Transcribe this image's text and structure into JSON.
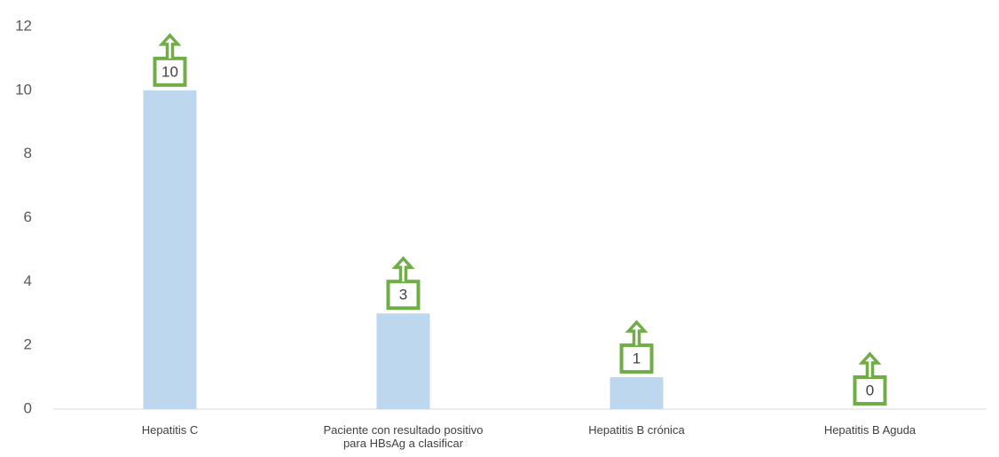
{
  "chart_data": {
    "type": "bar",
    "categories": [
      "Hepatitis C",
      "Paciente con resultado positivo para HBsAg a clasificar",
      "Hepatitis B crónica",
      "Hepatitis B Aguda"
    ],
    "values": [
      10,
      3,
      1,
      0
    ],
    "color": "#bdd7ee",
    "label_color": "#70ad47",
    "ylim": [
      0,
      12
    ],
    "yticks": [
      0,
      2,
      4,
      6,
      8,
      10,
      12
    ],
    "grid": false
  }
}
